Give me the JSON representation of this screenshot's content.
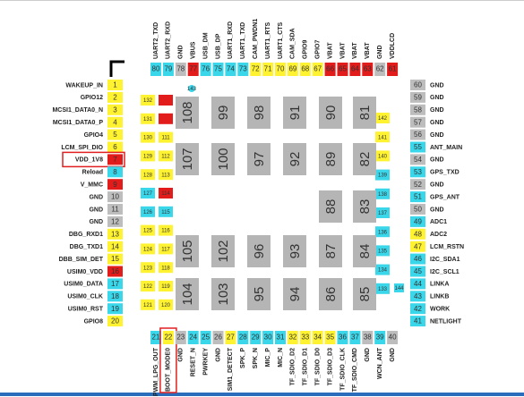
{
  "left_pins": [
    {
      "number": "1",
      "label": "WAKEUP_IN",
      "color": "yellow"
    },
    {
      "number": "2",
      "label": "GPIO12",
      "color": "yellow"
    },
    {
      "number": "3",
      "label": "MCSI1_DATA0_N",
      "color": "yellow"
    },
    {
      "number": "4",
      "label": "MCSI1_DATA0_P",
      "color": "yellow"
    },
    {
      "number": "5",
      "label": "GPIO4",
      "color": "yellow"
    },
    {
      "number": "6",
      "label": "LCM_SPI_DIO",
      "color": "yellow"
    },
    {
      "number": "7",
      "label": "VDD_1V8",
      "color": "red",
      "highlight": true
    },
    {
      "number": "8",
      "label": "Reload",
      "color": "cyan"
    },
    {
      "number": "9",
      "label": "V_MMC",
      "color": "red"
    },
    {
      "number": "10",
      "label": "GND",
      "color": "gray"
    },
    {
      "number": "11",
      "label": "GND",
      "color": "gray"
    },
    {
      "number": "12",
      "label": "GND",
      "color": "gray"
    },
    {
      "number": "13",
      "label": "DBG_RXD1",
      "color": "yellow"
    },
    {
      "number": "14",
      "label": "DBG_TXD1",
      "color": "yellow"
    },
    {
      "number": "15",
      "label": "DBB_SIM_DET",
      "color": "yellow"
    },
    {
      "number": "16",
      "label": "USIM0_VDD",
      "color": "red"
    },
    {
      "number": "17",
      "label": "USIM0_DATA",
      "color": "cyan"
    },
    {
      "number": "18",
      "label": "USIM0_CLK",
      "color": "cyan"
    },
    {
      "number": "19",
      "label": "USIM0_RST",
      "color": "cyan"
    },
    {
      "number": "20",
      "label": "GPIO8",
      "color": "yellow"
    }
  ],
  "right_pins": [
    {
      "number": "60",
      "label": "GND",
      "color": "gray"
    },
    {
      "number": "59",
      "label": "GND",
      "color": "gray"
    },
    {
      "number": "58",
      "label": "GND",
      "color": "gray"
    },
    {
      "number": "57",
      "label": "GND",
      "color": "gray"
    },
    {
      "number": "56",
      "label": "GND",
      "color": "gray"
    },
    {
      "number": "55",
      "label": "ANT_MAIN",
      "color": "cyan"
    },
    {
      "number": "54",
      "label": "GND",
      "color": "gray"
    },
    {
      "number": "53",
      "label": "GPS_TXD",
      "color": "cyan"
    },
    {
      "number": "52",
      "label": "GND",
      "color": "gray"
    },
    {
      "number": "51",
      "label": "GPS_ANT",
      "color": "cyan"
    },
    {
      "number": "50",
      "label": "GND",
      "color": "gray"
    },
    {
      "number": "49",
      "label": "ADC1",
      "color": "cyan"
    },
    {
      "number": "48",
      "label": "ADC2",
      "color": "yellow"
    },
    {
      "number": "47",
      "label": "LCM_RSTN",
      "color": "yellow"
    },
    {
      "number": "46",
      "label": "I2C_SDA1",
      "color": "cyan"
    },
    {
      "number": "45",
      "label": "I2C_SCL1",
      "color": "cyan"
    },
    {
      "number": "44",
      "label": "LINKA",
      "color": "cyan"
    },
    {
      "number": "43",
      "label": "LINKB",
      "color": "cyan"
    },
    {
      "number": "42",
      "label": "WORK",
      "color": "cyan"
    },
    {
      "number": "41",
      "label": "NETLIGHT",
      "color": "cyan"
    }
  ],
  "top_pins": [
    {
      "number": "80",
      "label": "UART2_TXD",
      "color": "cyan"
    },
    {
      "number": "79",
      "label": "UART2_RXD",
      "color": "cyan"
    },
    {
      "number": "78",
      "label": "GND",
      "color": "gray"
    },
    {
      "number": "77",
      "label": "VBUS",
      "color": "red"
    },
    {
      "number": "76",
      "label": "USB_DM",
      "color": "cyan"
    },
    {
      "number": "75",
      "label": "USB_DP",
      "color": "cyan"
    },
    {
      "number": "74",
      "label": "UART1_RXD",
      "color": "cyan"
    },
    {
      "number": "73",
      "label": "UART1_TXD",
      "color": "cyan"
    },
    {
      "number": "72",
      "label": "CAM_PWDN1",
      "color": "yellow"
    },
    {
      "number": "71",
      "label": "UART1_RTS",
      "color": "yellow"
    },
    {
      "number": "70",
      "label": "UART1_CTS",
      "color": "yellow"
    },
    {
      "number": "69",
      "label": "CAM_SDA",
      "color": "yellow"
    },
    {
      "number": "68",
      "label": "GPIO9",
      "color": "yellow"
    },
    {
      "number": "67",
      "label": "GPIO7",
      "color": "yellow"
    },
    {
      "number": "66",
      "label": "VBAT",
      "color": "red"
    },
    {
      "number": "65",
      "label": "VBAT",
      "color": "red"
    },
    {
      "number": "64",
      "label": "VBAT",
      "color": "red"
    },
    {
      "number": "63",
      "label": "VBAT",
      "color": "red"
    },
    {
      "number": "62",
      "label": "GND",
      "color": "gray"
    },
    {
      "number": "61",
      "label": "VDDLCD",
      "color": "red"
    }
  ],
  "bottom_pins": [
    {
      "number": "21",
      "label": "PWM_LPG_OUT",
      "color": "cyan"
    },
    {
      "number": "22",
      "label": "BOOT_MODE0",
      "color": "yellow",
      "highlight": true
    },
    {
      "number": "23",
      "label": "GND",
      "color": "gray"
    },
    {
      "number": "24",
      "label": "RESET_N",
      "color": "cyan"
    },
    {
      "number": "25",
      "label": "PWRKEY",
      "color": "cyan"
    },
    {
      "number": "26",
      "label": "GND",
      "color": "gray"
    },
    {
      "number": "27",
      "label": "SIM1_DETECT",
      "color": "yellow"
    },
    {
      "number": "28",
      "label": "SPK_P",
      "color": "cyan"
    },
    {
      "number": "29",
      "label": "SPK_N",
      "color": "cyan"
    },
    {
      "number": "30",
      "label": "MIC_P",
      "color": "cyan"
    },
    {
      "number": "31",
      "label": "MIC_N",
      "color": "cyan"
    },
    {
      "number": "32",
      "label": "TF_SDIO_D2",
      "color": "yellow"
    },
    {
      "number": "33",
      "label": "TF_SDIO_D1",
      "color": "yellow"
    },
    {
      "number": "34",
      "label": "TF_SDIO_D0",
      "color": "yellow"
    },
    {
      "number": "35",
      "label": "TF_SDIO_D3",
      "color": "yellow"
    },
    {
      "number": "36",
      "label": "TF_SDIO_CLK",
      "color": "cyan"
    },
    {
      "number": "37",
      "label": "TF_SDIO_CMD",
      "color": "cyan"
    },
    {
      "number": "38",
      "label": "GND",
      "color": "gray"
    },
    {
      "number": "39",
      "label": "WCN_ANT",
      "color": "cyan"
    },
    {
      "number": "40",
      "label": "GND",
      "color": "gray"
    }
  ],
  "inner_left_outer": [
    {
      "number": "132",
      "color": "yellow"
    },
    {
      "number": "131",
      "color": "yellow"
    },
    {
      "number": "130",
      "color": "yellow"
    },
    {
      "number": "129",
      "color": "yellow"
    },
    {
      "number": "128",
      "color": "yellow"
    },
    {
      "number": "127",
      "color": "cyan"
    },
    {
      "number": "126",
      "color": "cyan"
    },
    {
      "number": "125",
      "color": "yellow"
    },
    {
      "number": "124",
      "color": "yellow"
    },
    {
      "number": "123",
      "color": "yellow"
    },
    {
      "number": "122",
      "color": "yellow"
    },
    {
      "number": "121",
      "color": "yellow"
    }
  ],
  "inner_left_inner": [
    {
      "number": null,
      "color": "red"
    },
    {
      "number": null,
      "color": "red"
    },
    {
      "number": "111",
      "color": "yellow"
    },
    {
      "number": "112",
      "color": "yellow"
    },
    {
      "number": "113",
      "color": "yellow"
    },
    {
      "number": "114",
      "color": "red"
    },
    {
      "number": "115",
      "color": "cyan"
    },
    {
      "number": "116",
      "color": "yellow"
    },
    {
      "number": "117",
      "color": "yellow"
    },
    {
      "number": "118",
      "color": "yellow"
    },
    {
      "number": "119",
      "color": "yellow"
    },
    {
      "number": "120",
      "color": "yellow"
    }
  ],
  "inner_right": [
    {
      "number": "142",
      "color": "yellow"
    },
    {
      "number": "141",
      "color": "yellow"
    },
    {
      "number": "140",
      "color": "yellow"
    },
    {
      "number": "139",
      "color": "cyan"
    },
    {
      "number": "138",
      "color": "cyan"
    },
    {
      "number": "137",
      "color": "cyan"
    },
    {
      "number": "136",
      "color": "cyan"
    },
    {
      "number": "135",
      "color": "cyan"
    },
    {
      "number": "134",
      "color": "cyan"
    },
    {
      "number": "133",
      "color": "cyan"
    }
  ],
  "extra_pads": [
    {
      "number": "143",
      "color": "cyan"
    },
    {
      "number": "144",
      "color": "cyan"
    }
  ],
  "big_pads": [
    [
      "108",
      "99",
      "98",
      "91",
      "90",
      "81"
    ],
    [
      "107",
      "100",
      "97",
      "92",
      "89",
      "82"
    ],
    [
      null,
      null,
      null,
      null,
      "88",
      "83"
    ],
    [
      "105",
      "102",
      "96",
      "93",
      "87",
      "84"
    ],
    [
      "104",
      "103",
      "95",
      "94",
      "86",
      "85"
    ]
  ]
}
